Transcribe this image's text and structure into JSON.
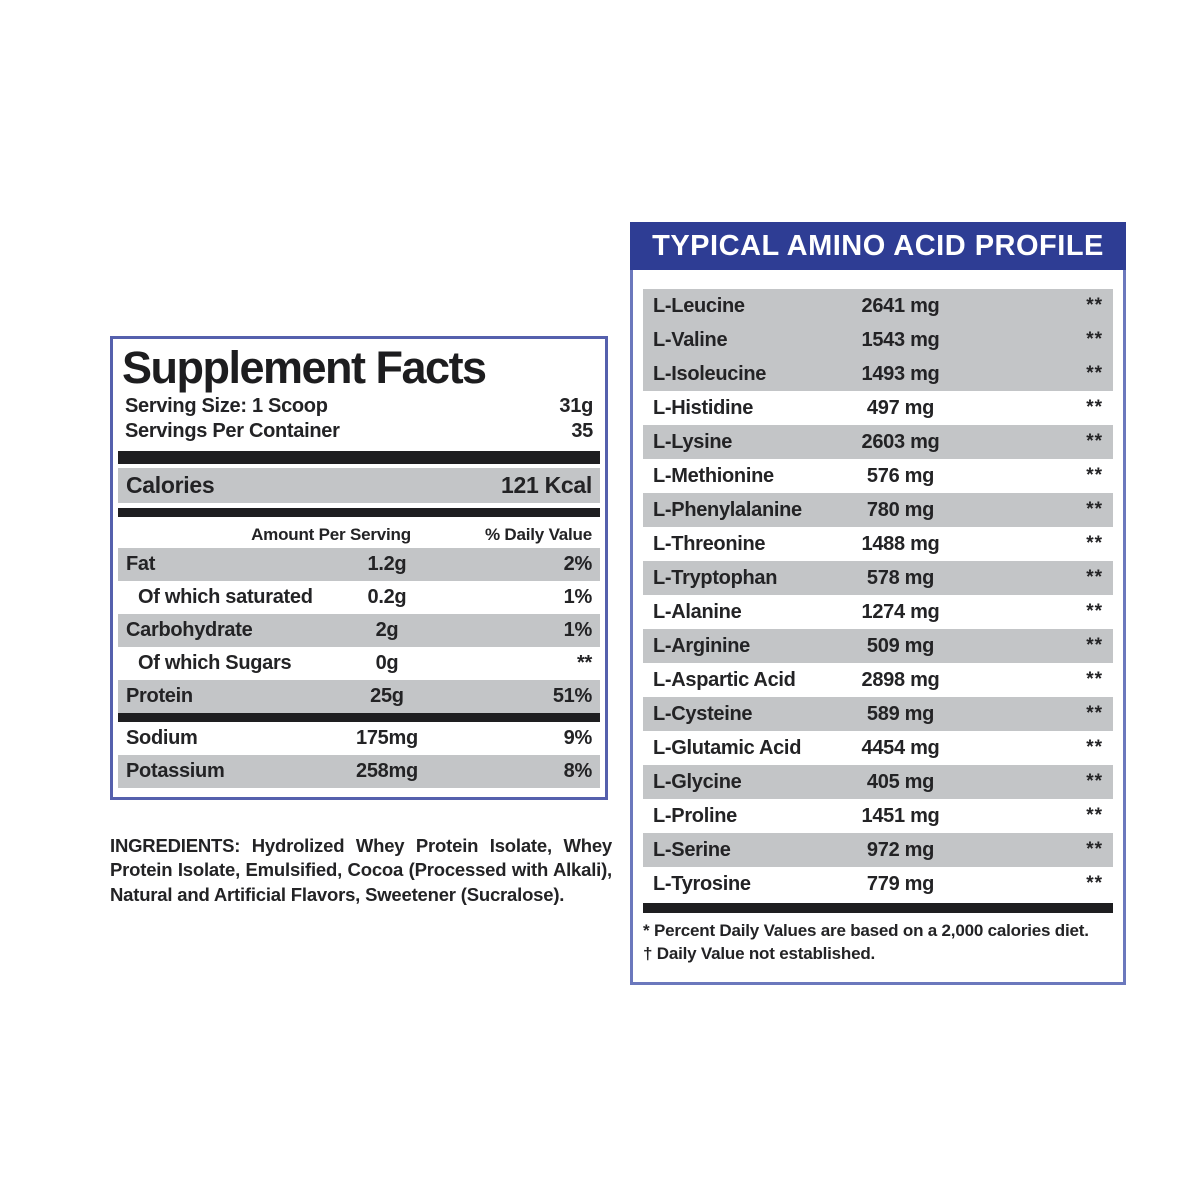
{
  "colors": {
    "accent-blue": "#2e3d94",
    "panel-border": "#5560ad",
    "light-border": "#6b78bd",
    "row-gray": "#c3c5c7",
    "bar-black": "#1e1e20",
    "text": "#232325"
  },
  "supplement_facts": {
    "title": "Supplement Facts",
    "serving_size_label": "Serving Size: 1 Scoop",
    "serving_size_value": "31g",
    "servings_per_container_label": "Servings Per Container",
    "servings_per_container_value": "35",
    "calories_label": "Calories",
    "calories_value": "121 Kcal",
    "column_headers": {
      "amount": "Amount Per Serving",
      "daily_value": "% Daily Value"
    },
    "rows": [
      {
        "name": "Fat",
        "amount": "1.2g",
        "dv": "2%",
        "shaded": true,
        "indent": false,
        "bar_after": false
      },
      {
        "name": "Of which saturated",
        "amount": "0.2g",
        "dv": "1%",
        "shaded": false,
        "indent": true,
        "bar_after": false
      },
      {
        "name": "Carbohydrate",
        "amount": "2g",
        "dv": "1%",
        "shaded": true,
        "indent": false,
        "bar_after": false
      },
      {
        "name": "Of which Sugars",
        "amount": "0g",
        "dv": "**",
        "shaded": false,
        "indent": true,
        "bar_after": false
      },
      {
        "name": "Protein",
        "amount": "25g",
        "dv": "51%",
        "shaded": true,
        "indent": false,
        "bar_after": true
      },
      {
        "name": "Sodium",
        "amount": "175mg",
        "dv": "9%",
        "shaded": false,
        "indent": false,
        "bar_after": false
      },
      {
        "name": "Potassium",
        "amount": "258mg",
        "dv": "8%",
        "shaded": true,
        "indent": false,
        "bar_after": false
      }
    ]
  },
  "ingredients": "INGREDIENTS: Hydrolized Whey Protein Isolate, Whey Protein Isolate, Emulsified, Cocoa (Processed with Alkali), Natural and Artificial Flavors, Sweetener (Sucralose).",
  "amino_profile": {
    "title": "TYPICAL AMINO ACID PROFILE",
    "rows": [
      {
        "name": "L-Leucine",
        "amount": "2641 mg",
        "note": "**",
        "shaded": true
      },
      {
        "name": "L-Valine",
        "amount": "1543 mg",
        "note": "**",
        "shaded": true
      },
      {
        "name": "L-Isoleucine",
        "amount": "1493 mg",
        "note": "**",
        "shaded": true
      },
      {
        "name": "L-Histidine",
        "amount": "497 mg",
        "note": "**",
        "shaded": false
      },
      {
        "name": "L-Lysine",
        "amount": "2603 mg",
        "note": "**",
        "shaded": true
      },
      {
        "name": "L-Methionine",
        "amount": "576 mg",
        "note": "**",
        "shaded": false
      },
      {
        "name": "L-Phenylalanine",
        "amount": "780 mg",
        "note": "**",
        "shaded": true
      },
      {
        "name": "L-Threonine",
        "amount": "1488 mg",
        "note": "**",
        "shaded": false
      },
      {
        "name": "L-Tryptophan",
        "amount": "578 mg",
        "note": "**",
        "shaded": true
      },
      {
        "name": "L-Alanine",
        "amount": "1274 mg",
        "note": "**",
        "shaded": false
      },
      {
        "name": "L-Arginine",
        "amount": "509 mg",
        "note": "**",
        "shaded": true
      },
      {
        "name": "L-Aspartic Acid",
        "amount": "2898 mg",
        "note": "**",
        "shaded": false
      },
      {
        "name": "L-Cysteine",
        "amount": "589 mg",
        "note": "**",
        "shaded": true
      },
      {
        "name": "L-Glutamic Acid",
        "amount": "4454 mg",
        "note": "**",
        "shaded": false
      },
      {
        "name": "L-Glycine",
        "amount": "405 mg",
        "note": "**",
        "shaded": true
      },
      {
        "name": "L-Proline",
        "amount": "1451 mg",
        "note": "**",
        "shaded": false
      },
      {
        "name": "L-Serine",
        "amount": "972 mg",
        "note": "**",
        "shaded": true
      },
      {
        "name": "L-Tyrosine",
        "amount": "779 mg",
        "note": "**",
        "shaded": false
      }
    ],
    "footnotes": [
      "* Percent Daily Values are based on a 2,000 calories diet.",
      "† Daily Value not established."
    ]
  }
}
